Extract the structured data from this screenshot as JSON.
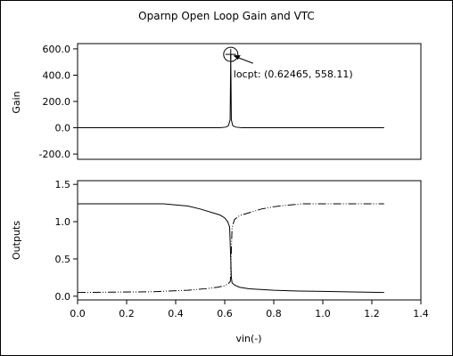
{
  "chart_data": [
    {
      "type": "line",
      "title": "Oparnp Open Loop Gain and VTC",
      "ylabel": "Gain",
      "xlabel": "",
      "xlim": [
        0.0,
        1.4
      ],
      "ylim": [
        -240,
        640
      ],
      "yticks": [
        -200,
        0,
        200,
        400,
        600
      ],
      "yticklabels": [
        "-200.0",
        "0.0",
        "200.0",
        "400.0",
        "600.0"
      ],
      "series": [
        {
          "x": [
            0.0,
            0.5,
            0.58,
            0.605,
            0.615,
            0.622,
            0.62465,
            0.627,
            0.633,
            0.645,
            0.67,
            0.8,
            1.25
          ],
          "y": [
            0,
            0,
            0,
            5,
            15,
            60,
            558.11,
            60,
            15,
            5,
            0,
            0,
            0
          ]
        }
      ],
      "annotation": {
        "label": "locpt: (0.62465, 558.11)",
        "x": 0.62465,
        "y": 558.11
      }
    },
    {
      "type": "line",
      "ylabel": "Outputs",
      "xlabel": "vin(-)",
      "xlim": [
        0.0,
        1.4
      ],
      "ylim": [
        -0.05,
        1.55
      ],
      "xticks": [
        0.0,
        0.2,
        0.4,
        0.6,
        0.8,
        1.0,
        1.2,
        1.4
      ],
      "xticklabels": [
        "0.0",
        "0.2",
        "0.4",
        "0.6",
        "0.8",
        "1.0",
        "1.2",
        "1.4"
      ],
      "yticks": [
        0.0,
        0.5,
        1.0,
        1.5
      ],
      "yticklabels": [
        "0.0",
        "0.5",
        "1.0",
        "1.5"
      ],
      "series": [
        {
          "style": "solid",
          "x": [
            0.0,
            0.35,
            0.45,
            0.5,
            0.55,
            0.58,
            0.6,
            0.612,
            0.62,
            0.624,
            0.627,
            0.63,
            0.64,
            0.66,
            0.7,
            0.8,
            0.9,
            1.0,
            1.25
          ],
          "y": [
            1.24,
            1.24,
            1.21,
            1.17,
            1.12,
            1.09,
            1.05,
            1.0,
            0.93,
            0.55,
            0.25,
            0.18,
            0.15,
            0.12,
            0.1,
            0.08,
            0.07,
            0.065,
            0.05
          ]
        },
        {
          "style": "dash-dot-dot",
          "x": [
            0.0,
            0.3,
            0.45,
            0.52,
            0.57,
            0.6,
            0.615,
            0.623,
            0.626,
            0.63,
            0.64,
            0.66,
            0.7,
            0.75,
            0.8,
            0.85,
            0.92,
            1.0,
            1.25
          ],
          "y": [
            0.05,
            0.06,
            0.08,
            0.1,
            0.12,
            0.14,
            0.17,
            0.2,
            0.5,
            0.92,
            1.03,
            1.08,
            1.12,
            1.17,
            1.2,
            1.22,
            1.24,
            1.24,
            1.24
          ]
        }
      ]
    }
  ]
}
